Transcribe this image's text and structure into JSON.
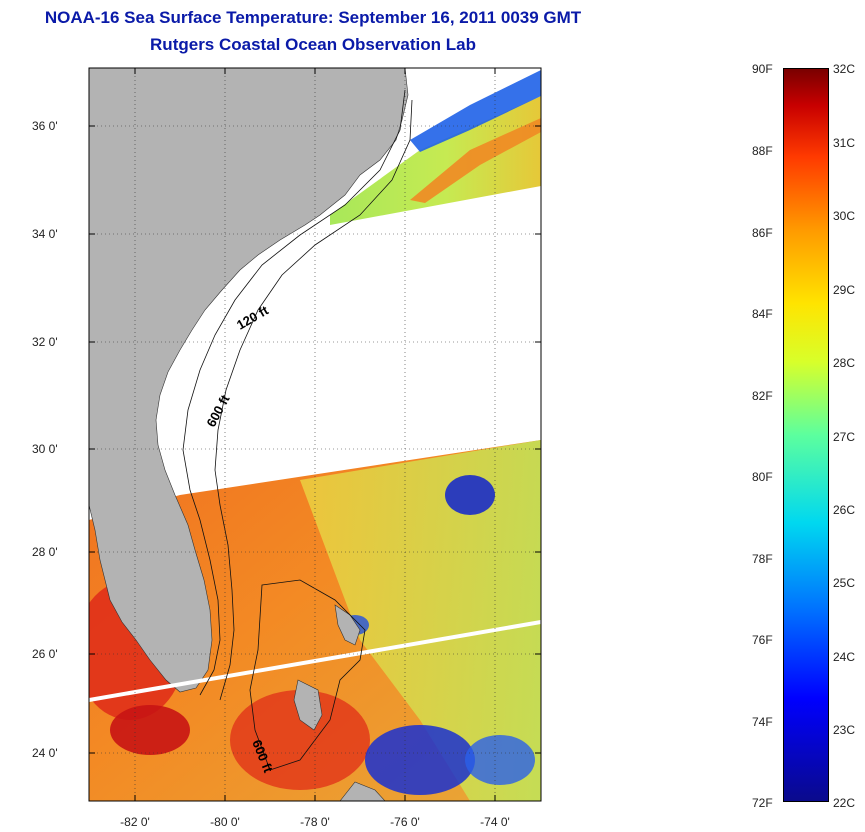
{
  "title": {
    "line1": "NOAA-16 Sea Surface Temperature:  September 16, 2011 0039 GMT",
    "line2": "Rutgers Coastal Ocean Observation Lab"
  },
  "map": {
    "lat_ticks": [
      {
        "value": 36,
        "label": "36 0'"
      },
      {
        "value": 34,
        "label": "34 0'"
      },
      {
        "value": 32,
        "label": "32 0'"
      },
      {
        "value": 30,
        "label": "30 0'"
      },
      {
        "value": 28,
        "label": "28 0'"
      },
      {
        "value": 26,
        "label": "26 0'"
      },
      {
        "value": 24,
        "label": "24 0'"
      }
    ],
    "lon_ticks": [
      {
        "value": -82,
        "label": "-82 0'"
      },
      {
        "value": -80,
        "label": "-80 0'"
      },
      {
        "value": -78,
        "label": "-78 0'"
      },
      {
        "value": -76,
        "label": "-76 0'"
      },
      {
        "value": -74,
        "label": "-74 0'"
      }
    ],
    "contour_labels": {
      "c120": "120 ft",
      "c600_north": "600 ft",
      "c600_south": "600 ft"
    },
    "colors": {
      "land": "#b3b3b3",
      "no_data": "#ffffff",
      "warm_water": "#f26a1a",
      "hot_water": "#d8261a",
      "mild_water": "#c9e63a",
      "cool_water": "#2050e0",
      "scan_gap": "#ffffff"
    }
  },
  "colorbar": {
    "fahrenheit": [
      "90F",
      "88F",
      "86F",
      "84F",
      "82F",
      "80F",
      "78F",
      "76F",
      "74F",
      "72F"
    ],
    "celsius": [
      "32C",
      "31C",
      "30C",
      "29C",
      "28C",
      "27C",
      "26C",
      "25C",
      "24C",
      "23C",
      "22C"
    ]
  }
}
